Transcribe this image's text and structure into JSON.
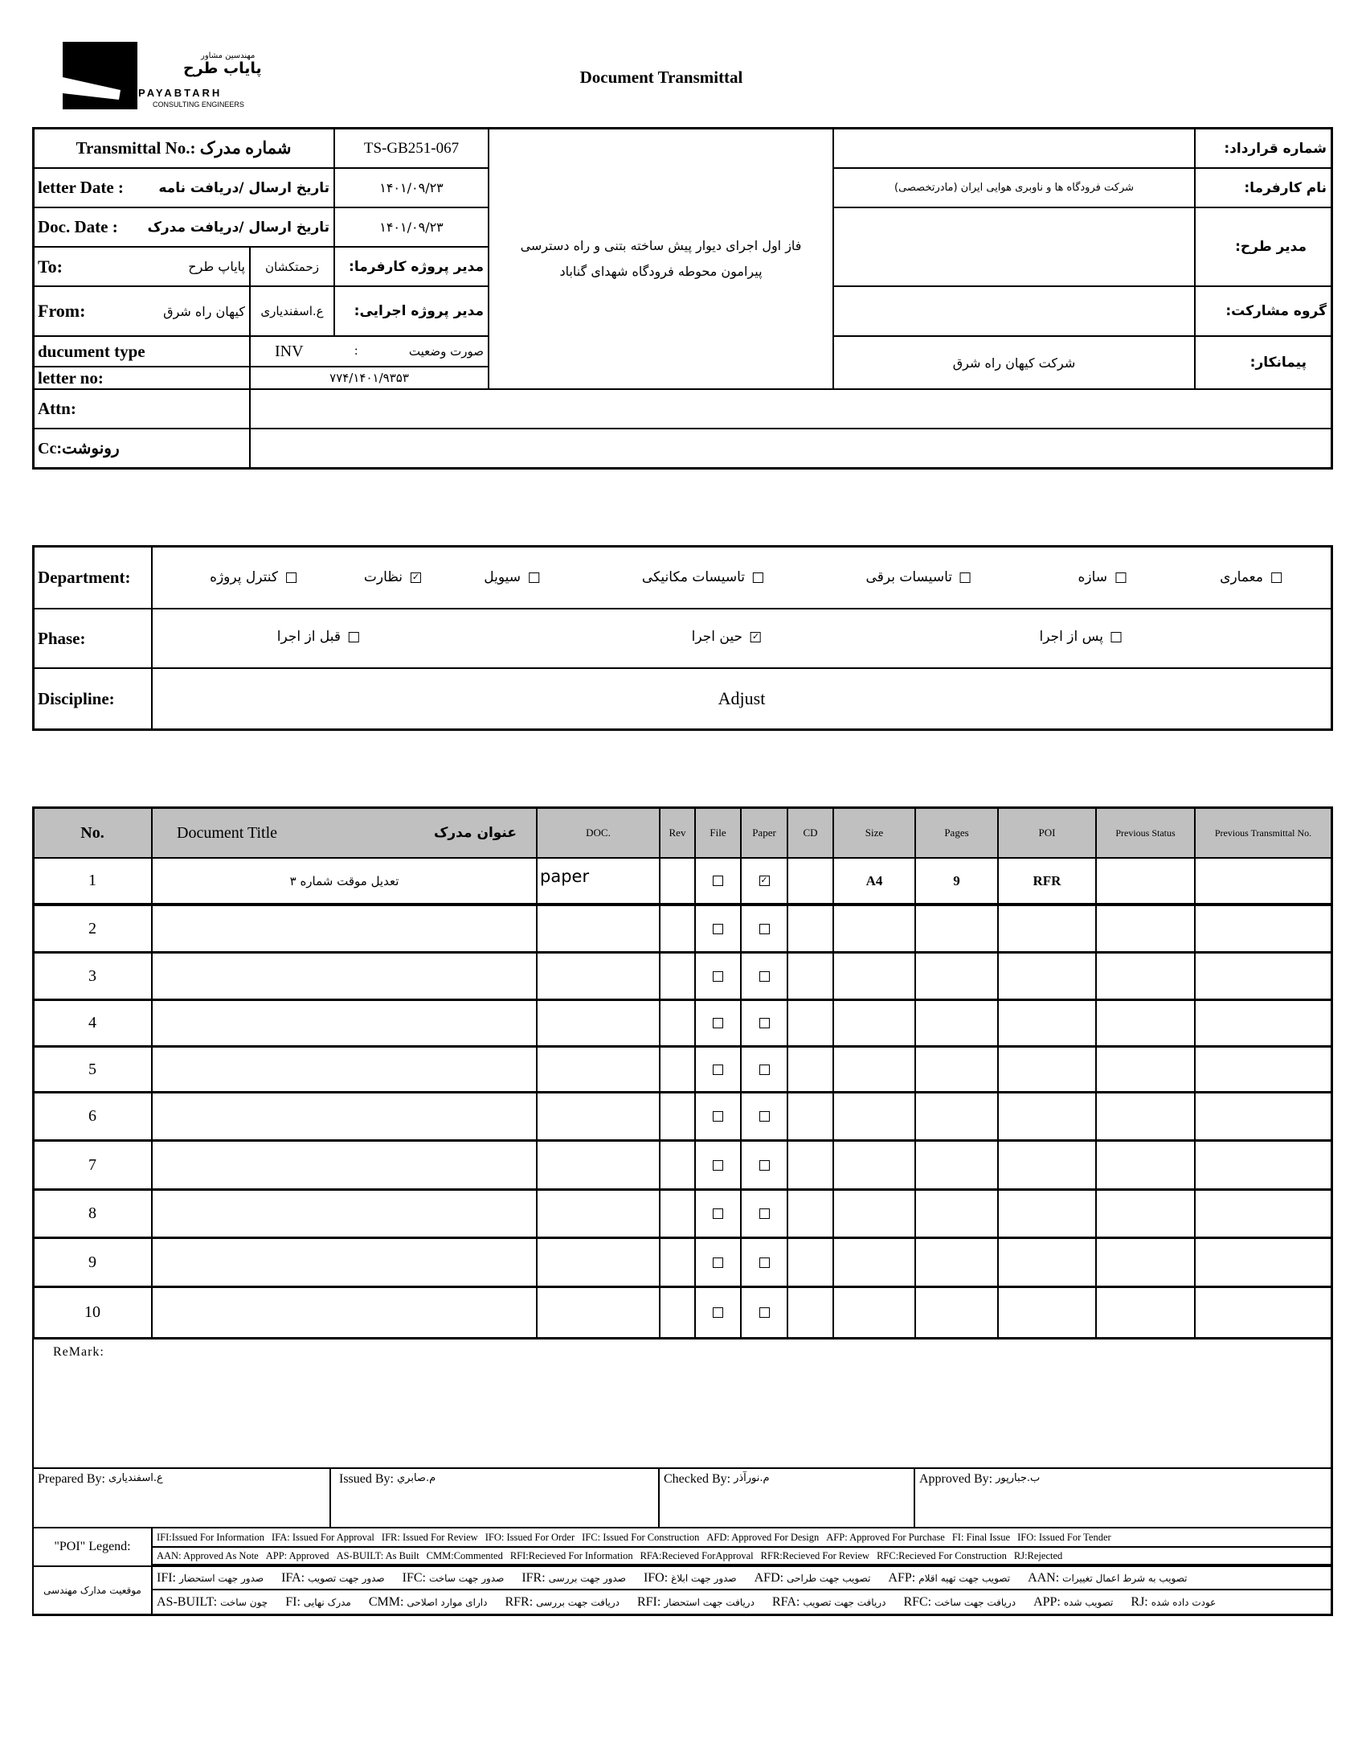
{
  "logo": {
    "company_fa_small": "مهندسین مشاور",
    "company_fa": "پایاب طرح",
    "company_en": "PAYABTARH",
    "tagline": "CONSULTING ENGINEERS"
  },
  "title": "Document Transmittal",
  "header": {
    "transmittal_label": "Transmittal No.: شماره مدرک",
    "transmittal_no": "TS-GB251-067",
    "letter_date_label_en": "letter Date  :",
    "letter_date_label_fa": "تاریخ ارسال /دریافت نامه",
    "letter_date": "۱۴۰۱/۰۹/۲۳",
    "doc_date_label_en": "Doc. Date :",
    "doc_date_label_fa": "تاریخ ارسال /دریافت مدرک",
    "doc_date": "۱۴۰۱/۰۹/۲۳",
    "to_label": "To:",
    "to_value": "پایاپ طرح",
    "client_pm_name": "زحمتکشان",
    "client_pm_label": "مدیر پروژه کارفرما:",
    "from_label": "From:",
    "from_value": "کیهان راه شرق",
    "exec_pm_name": "ع.اسفندیاری",
    "exec_pm_label": "مدیر پروژه اجرایی:",
    "doc_type_label": "ducument type",
    "doc_type_code": "INV",
    "doc_type_sep": ":",
    "doc_type_fa": "صورت وضعیت",
    "letter_no_label": "letter no:",
    "letter_no": "۷۷۴/۱۴۰۱/۹۳۵۳",
    "project_line1": "فاز اول اجرای دیوار پیش ساخته بتنی و راه دسترسی",
    "project_line2": "پیرامون محوطه فرودگاه شهدای گناباد",
    "contract_no_label": "شماره قرارداد:",
    "contract_no": "",
    "client_label": "نام کارفرما:",
    "client": "شرکت فرودگاه ها و ناوبری هوایی ایران (مادرتخصصی)",
    "plan_manager_label": "مدیر طرح:",
    "plan_manager": "",
    "partnership_label": "گروه مشارکت:",
    "partnership": "",
    "contractor_label": "پیمانکار:",
    "contractor": "شرکت کیهان راه شرق",
    "attn_label": "Attn:",
    "attn": "",
    "cc_label": "Cc:رونوشت",
    "cc": ""
  },
  "department": {
    "label": "Department:",
    "options": [
      {
        "label": "معماری",
        "checked": false
      },
      {
        "label": "سازه",
        "checked": false
      },
      {
        "label": "تاسیسات برقی",
        "checked": false
      },
      {
        "label": "تاسیسات مکانیکی",
        "checked": false
      },
      {
        "label": "سیویل",
        "checked": false
      },
      {
        "label": "نظارت",
        "checked": true
      },
      {
        "label": "کنترل پروژه",
        "checked": false
      }
    ]
  },
  "phase": {
    "label": "Phase:",
    "options": [
      {
        "label": "پس از اجرا",
        "checked": false
      },
      {
        "label": "حین اجرا",
        "checked": true
      },
      {
        "label": "قبل از اجرا",
        "checked": false
      }
    ]
  },
  "discipline": {
    "label": "Discipline:",
    "value": "Adjust"
  },
  "documents": {
    "columns": {
      "no": "No.",
      "title_en": "Document Title",
      "title_fa": "عنوان مدرک",
      "doc": "DOC.",
      "rev": "Rev",
      "file": "File",
      "paper": "Paper",
      "cd": "CD",
      "size": "Size",
      "pages": "Pages",
      "poi": "POI",
      "prev_status": "Previous Status",
      "prev_transmittal": "Previous Transmittal No."
    },
    "rows": [
      {
        "no": "1",
        "title": "تعدیل موقت شماره ۳",
        "doc": "paper",
        "rev": "",
        "file": false,
        "paper": true,
        "cd": "",
        "size": "A4",
        "pages": "9",
        "poi": "RFR",
        "prev_status": "",
        "prev_transmittal": ""
      },
      {
        "no": "2",
        "title": "",
        "doc": "",
        "rev": "",
        "file": false,
        "paper": false,
        "cd": "",
        "size": "",
        "pages": "",
        "poi": "",
        "prev_status": "",
        "prev_transmittal": ""
      },
      {
        "no": "3",
        "title": "",
        "doc": "",
        "rev": "",
        "file": false,
        "paper": false,
        "cd": "",
        "size": "",
        "pages": "",
        "poi": "",
        "prev_status": "",
        "prev_transmittal": ""
      },
      {
        "no": "4",
        "title": "",
        "doc": "",
        "rev": "",
        "file": false,
        "paper": false,
        "cd": "",
        "size": "",
        "pages": "",
        "poi": "",
        "prev_status": "",
        "prev_transmittal": ""
      },
      {
        "no": "5",
        "title": "",
        "doc": "",
        "rev": "",
        "file": false,
        "paper": false,
        "cd": "",
        "size": "",
        "pages": "",
        "poi": "",
        "prev_status": "",
        "prev_transmittal": ""
      },
      {
        "no": "6",
        "title": "",
        "doc": "",
        "rev": "",
        "file": false,
        "paper": false,
        "cd": "",
        "size": "",
        "pages": "",
        "poi": "",
        "prev_status": "",
        "prev_transmittal": ""
      },
      {
        "no": "7",
        "title": "",
        "doc": "",
        "rev": "",
        "file": false,
        "paper": false,
        "cd": "",
        "size": "",
        "pages": "",
        "poi": "",
        "prev_status": "",
        "prev_transmittal": ""
      },
      {
        "no": "8",
        "title": "",
        "doc": "",
        "rev": "",
        "file": false,
        "paper": false,
        "cd": "",
        "size": "",
        "pages": "",
        "poi": "",
        "prev_status": "",
        "prev_transmittal": ""
      },
      {
        "no": "9",
        "title": "",
        "doc": "",
        "rev": "",
        "file": false,
        "paper": false,
        "cd": "",
        "size": "",
        "pages": "",
        "poi": "",
        "prev_status": "",
        "prev_transmittal": ""
      },
      {
        "no": "10",
        "title": "",
        "doc": "",
        "rev": "",
        "file": false,
        "paper": false,
        "cd": "",
        "size": "",
        "pages": "",
        "poi": "",
        "prev_status": "",
        "prev_transmittal": ""
      }
    ]
  },
  "remark_label": "ReMark:",
  "signatures": {
    "prepared_label": "Prepared By:",
    "prepared": "ع.اسفندیاری",
    "issued_label": "Issued By:",
    "issued": "م.صابري",
    "checked_label": "Checked By:",
    "checked": "م.نورآذر",
    "approved_label": "Approved By:",
    "approved": "ب.جبارپور"
  },
  "legend": {
    "poi_label": "\"POI\" Legend:",
    "line1": [
      "IFI:Issued For Information",
      "IFA: Issued For Approval",
      "IFR: Issued For Review",
      "IFO: Issued For Order",
      "IFC: Issued For Construction",
      "AFD: Approved For Design",
      "AFP: Approved For Purchase",
      "FI: Final Issue",
      "IFO: Issued For Tender"
    ],
    "line2": [
      "AAN: Approved As Note",
      "APP: Approved",
      "AS-BUILT: As Built",
      "CMM:Commented",
      "RFI:Recieved For Information",
      "RFA:Recieved ForApproval",
      "RFR:Recieved For Review",
      "RFC:Recieved For Construction",
      "RJ:Rejected"
    ],
    "fa_label": "موقعیت مدارک مهندسی",
    "line3": [
      {
        "code": "IFI:",
        "text": "صدور جهت استحضار"
      },
      {
        "code": "IFA:",
        "text": "صدور جهت تصویب"
      },
      {
        "code": "IFC:",
        "text": "صدور جهت ساخت"
      },
      {
        "code": "IFR:",
        "text": "صدور جهت بررسی"
      },
      {
        "code": "IFO:",
        "text": "صدور جهت ابلاغ"
      },
      {
        "code": "AFD:",
        "text": "تصویب جهت طراحی"
      },
      {
        "code": "AFP:",
        "text": "تصویب جهت تهیه اقلام"
      },
      {
        "code": "AAN:",
        "text": "تصویب به شرط اعمال تغییرات"
      }
    ],
    "line4": [
      {
        "code": "AS-BUILT:",
        "text": "چون ساخت"
      },
      {
        "code": "FI:",
        "text": "مدرک نهایی"
      },
      {
        "code": "CMM:",
        "text": "دارای موارد اصلاحی"
      },
      {
        "code": "RFR:",
        "text": "دریافت جهت بررسی"
      },
      {
        "code": "RFI:",
        "text": "دریافت جهت استحضار"
      },
      {
        "code": "RFA:",
        "text": "دریافت جهت تصویب"
      },
      {
        "code": "RFC:",
        "text": "دریافت جهت ساخت"
      },
      {
        "code": "APP:",
        "text": "تصویب شده"
      },
      {
        "code": "RJ:",
        "text": "عودت داده شده"
      }
    ]
  }
}
